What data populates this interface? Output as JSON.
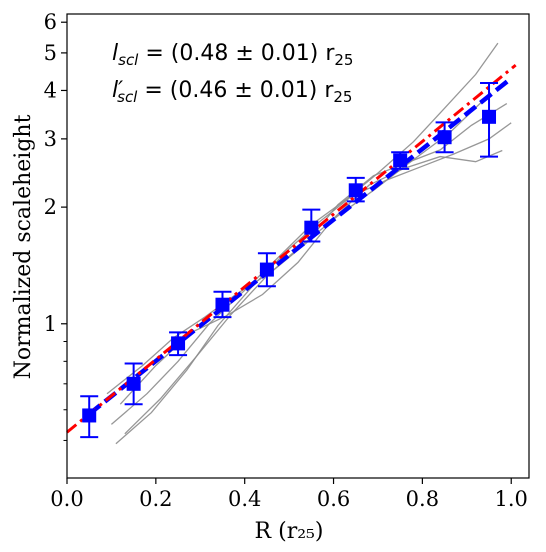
{
  "chart_data": {
    "type": "line",
    "xlabel": "R (r₂₅)",
    "ylabel": "Normalized scaleheight",
    "xlim": [
      0.0,
      1.04
    ],
    "ylim": [
      0.4,
      6.3
    ],
    "y_scale": "log",
    "grid": false,
    "x_ticks": [
      0.0,
      0.2,
      0.4,
      0.6,
      0.8,
      1.0
    ],
    "x_tick_labels": [
      "0.0",
      "0.2",
      "0.4",
      "0.6",
      "0.8",
      "1.0"
    ],
    "y_ticks": [
      1,
      2,
      3,
      4,
      5,
      6
    ],
    "y_tick_labels": [
      "1",
      "2",
      "3",
      "4",
      "5",
      "6"
    ],
    "annotations": [
      {
        "main": "l",
        "sub": "scl",
        "prime": "",
        "text": " = (0.48 ± 0.01) r",
        "sub2": "25"
      },
      {
        "main": "l",
        "sub": "scl",
        "prime": "′",
        "text": " = (0.46 ± 0.01) r",
        "sub2": "25"
      }
    ],
    "colors": {
      "binned": "#0000ff",
      "fit_blue": "#0000ff",
      "fit_red": "#ff0000",
      "profiles": "#8c8c8c"
    },
    "binned_points": {
      "x": [
        0.05,
        0.15,
        0.25,
        0.35,
        0.45,
        0.55,
        0.65,
        0.75,
        0.85,
        0.95
      ],
      "y": [
        0.58,
        0.7,
        0.89,
        1.12,
        1.38,
        1.77,
        2.21,
        2.64,
        3.03,
        3.42
      ],
      "yerr_low": [
        0.07,
        0.08,
        0.06,
        0.08,
        0.13,
        0.14,
        0.14,
        0.13,
        0.26,
        0.72
      ],
      "yerr_high": [
        0.07,
        0.09,
        0.06,
        0.09,
        0.14,
        0.2,
        0.17,
        0.13,
        0.28,
        0.76
      ]
    },
    "fit_lines": [
      {
        "style": "dashed",
        "color": "#0000ff",
        "x": [
          0.05,
          1.0
        ],
        "y": [
          0.585,
          4.3
        ]
      },
      {
        "style": "dashdot",
        "color": "#ff0000",
        "x": [
          0.0,
          1.01
        ],
        "y": [
          0.525,
          4.65
        ]
      }
    ],
    "profiles": [
      {
        "x": [
          0.1,
          0.18,
          0.25,
          0.32,
          0.4,
          0.48,
          0.55,
          0.63,
          0.7,
          0.78,
          0.85,
          0.92,
          0.97
        ],
        "y": [
          0.55,
          0.66,
          0.8,
          1.0,
          1.22,
          1.5,
          1.8,
          2.1,
          2.45,
          2.95,
          3.6,
          4.4,
          5.3
        ]
      },
      {
        "x": [
          0.09,
          0.17,
          0.24,
          0.31,
          0.38,
          0.46,
          0.54,
          0.61,
          0.69,
          0.76,
          0.84,
          0.91,
          0.99
        ],
        "y": [
          0.66,
          0.78,
          0.92,
          1.04,
          1.19,
          1.36,
          1.62,
          2.03,
          2.41,
          2.59,
          2.81,
          3.25,
          3.7
        ]
      },
      {
        "x": [
          0.11,
          0.19,
          0.27,
          0.34,
          0.42,
          0.5,
          0.57,
          0.64,
          0.72,
          0.8,
          0.87,
          0.95,
          1.0
        ],
        "y": [
          0.49,
          0.59,
          0.76,
          0.99,
          1.26,
          1.56,
          1.84,
          2.13,
          2.35,
          2.55,
          2.74,
          3.0,
          3.3
        ]
      },
      {
        "x": [
          0.12,
          0.2,
          0.28,
          0.36,
          0.44,
          0.52,
          0.6,
          0.68,
          0.76,
          0.84,
          0.92,
          0.98
        ],
        "y": [
          0.62,
          0.78,
          0.95,
          1.05,
          1.19,
          1.44,
          1.87,
          2.28,
          2.52,
          2.7,
          2.62,
          2.8
        ]
      },
      {
        "x": [
          0.13,
          0.21,
          0.29,
          0.37,
          0.45,
          0.53,
          0.61,
          0.69,
          0.77,
          0.86,
          0.94
        ],
        "y": [
          0.52,
          0.64,
          0.82,
          1.06,
          1.33,
          1.6,
          1.9,
          2.21,
          2.6,
          3.1,
          3.8
        ]
      }
    ]
  }
}
